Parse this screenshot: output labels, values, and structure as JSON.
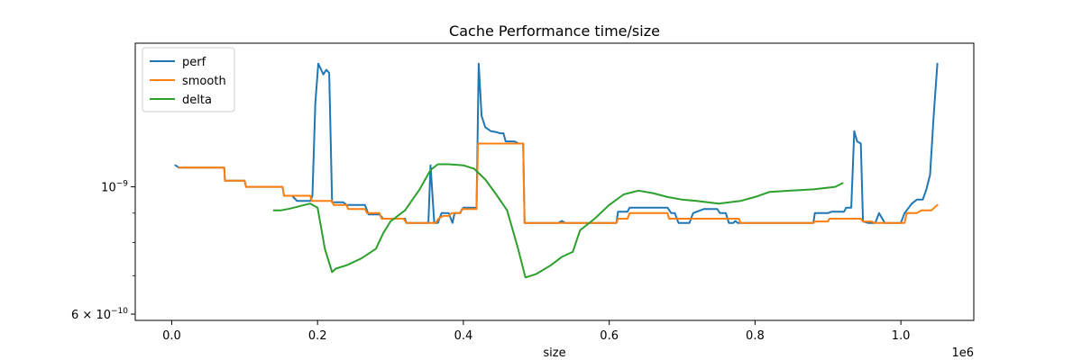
{
  "chart_data": {
    "type": "line",
    "title": "Cache Performance time/size",
    "xlabel": "size",
    "ylabel": "",
    "x_offset_label": "1e6",
    "x_scale": "linear",
    "y_scale": "log",
    "xlim": [
      -50000,
      1100000
    ],
    "ylim": [
      5.85e-10,
      1.78e-09
    ],
    "x_ticks": [
      {
        "value": 0,
        "label": "0.0"
      },
      {
        "value": 200000,
        "label": "0.2"
      },
      {
        "value": 400000,
        "label": "0.4"
      },
      {
        "value": 600000,
        "label": "0.6"
      },
      {
        "value": 800000,
        "label": "0.8"
      },
      {
        "value": 1000000,
        "label": "1.0"
      }
    ],
    "y_ticks_major": [
      {
        "value": 1e-09,
        "label_base": "10",
        "label_exp": "−9"
      },
      {
        "value": 6e-10,
        "label_base": "6 × 10",
        "label_exp": "−10"
      }
    ],
    "y_ticks_minor": [
      7e-10,
      8e-10,
      9e-10
    ],
    "grid": false,
    "legend_position": "upper-left",
    "series": [
      {
        "name": "perf",
        "color": "#1f77b4",
        "points": [
          [
            5000,
            1.09e-09
          ],
          [
            10000,
            1.08e-09
          ],
          [
            20000,
            1.08e-09
          ],
          [
            40000,
            1.08e-09
          ],
          [
            72000,
            1.08e-09
          ],
          [
            73000,
            1.025e-09
          ],
          [
            100000,
            1.025e-09
          ],
          [
            102000,
            1e-09
          ],
          [
            152000,
            1e-09
          ],
          [
            154000,
            9.65e-10
          ],
          [
            165000,
            9.65e-10
          ],
          [
            172000,
            9.45e-10
          ],
          [
            190000,
            9.45e-10
          ],
          [
            193000,
            9.65e-10
          ],
          [
            197000,
            1.4e-09
          ],
          [
            201000,
            1.64e-09
          ],
          [
            205000,
            1.6e-09
          ],
          [
            208000,
            1.57e-09
          ],
          [
            212000,
            1.6e-09
          ],
          [
            216000,
            1.58e-09
          ],
          [
            220000,
            9.4e-10
          ],
          [
            235000,
            9.4e-10
          ],
          [
            240000,
            9.3e-10
          ],
          [
            265000,
            9.3e-10
          ],
          [
            270000,
            8.95e-10
          ],
          [
            285000,
            8.95e-10
          ],
          [
            290000,
            8.8e-10
          ],
          [
            320000,
            8.8e-10
          ],
          [
            322000,
            8.65e-10
          ],
          [
            352000,
            8.65e-10
          ],
          [
            355000,
            1.09e-09
          ],
          [
            360000,
            8.65e-10
          ],
          [
            365000,
            8.65e-10
          ],
          [
            370000,
            9e-10
          ],
          [
            380000,
            9e-10
          ],
          [
            385000,
            8.65e-10
          ],
          [
            388000,
            9e-10
          ],
          [
            395000,
            9e-10
          ],
          [
            400000,
            9.2e-10
          ],
          [
            410000,
            9.2e-10
          ],
          [
            418000,
            9.2e-10
          ],
          [
            421000,
            1.64e-09
          ],
          [
            425000,
            1.33e-09
          ],
          [
            430000,
            1.27e-09
          ],
          [
            438000,
            1.25e-09
          ],
          [
            446000,
            1.245e-09
          ],
          [
            450000,
            1.24e-09
          ],
          [
            455000,
            1.24e-09
          ],
          [
            458000,
            1.2e-09
          ],
          [
            470000,
            1.2e-09
          ],
          [
            476000,
            1.19e-09
          ],
          [
            482000,
            1.19e-09
          ],
          [
            484000,
            8.65e-10
          ],
          [
            530000,
            8.65e-10
          ],
          [
            535000,
            8.72e-10
          ],
          [
            540000,
            8.65e-10
          ],
          [
            610000,
            8.65e-10
          ],
          [
            612000,
            9.05e-10
          ],
          [
            625000,
            9.05e-10
          ],
          [
            628000,
            9.2e-10
          ],
          [
            680000,
            9.2e-10
          ],
          [
            685000,
            9e-10
          ],
          [
            690000,
            9e-10
          ],
          [
            695000,
            8.65e-10
          ],
          [
            710000,
            8.65e-10
          ],
          [
            715000,
            9e-10
          ],
          [
            730000,
            9.15e-10
          ],
          [
            748000,
            9.15e-10
          ],
          [
            752000,
            9e-10
          ],
          [
            760000,
            9e-10
          ],
          [
            764000,
            8.65e-10
          ],
          [
            770000,
            8.65e-10
          ],
          [
            773000,
            8.72e-10
          ],
          [
            776000,
            8.65e-10
          ],
          [
            880000,
            8.65e-10
          ],
          [
            882000,
            9e-10
          ],
          [
            900000,
            9e-10
          ],
          [
            905000,
            9.05e-10
          ],
          [
            922000,
            9.05e-10
          ],
          [
            925000,
            9.2e-10
          ],
          [
            932000,
            9.2e-10
          ],
          [
            936000,
            1.25e-09
          ],
          [
            940000,
            1.2e-09
          ],
          [
            945000,
            1.19e-09
          ],
          [
            948000,
            8.7e-10
          ],
          [
            955000,
            8.65e-10
          ],
          [
            965000,
            8.65e-10
          ],
          [
            970000,
            9e-10
          ],
          [
            978000,
            8.65e-10
          ],
          [
            1000000,
            8.65e-10
          ],
          [
            1005000,
            9e-10
          ],
          [
            1015000,
            9.35e-10
          ],
          [
            1022000,
            9.5e-10
          ],
          [
            1030000,
            9.5e-10
          ],
          [
            1035000,
            9.9e-10
          ],
          [
            1040000,
            1.05e-09
          ],
          [
            1045000,
            1.33e-09
          ],
          [
            1050000,
            1.64e-09
          ]
        ]
      },
      {
        "name": "smooth",
        "color": "#ff7f0e",
        "points": [
          [
            10000,
            1.08e-09
          ],
          [
            72000,
            1.08e-09
          ],
          [
            73000,
            1.025e-09
          ],
          [
            100000,
            1.025e-09
          ],
          [
            102000,
            1e-09
          ],
          [
            152000,
            1e-09
          ],
          [
            154000,
            9.65e-10
          ],
          [
            190000,
            9.65e-10
          ],
          [
            192000,
            9.45e-10
          ],
          [
            220000,
            9.45e-10
          ],
          [
            222000,
            9.3e-10
          ],
          [
            240000,
            9.3e-10
          ],
          [
            242000,
            9.15e-10
          ],
          [
            265000,
            9.15e-10
          ],
          [
            268000,
            9e-10
          ],
          [
            285000,
            9e-10
          ],
          [
            288000,
            8.8e-10
          ],
          [
            318000,
            8.8e-10
          ],
          [
            322000,
            8.65e-10
          ],
          [
            362000,
            8.65e-10
          ],
          [
            366000,
            8.8e-10
          ],
          [
            372000,
            8.9e-10
          ],
          [
            380000,
            8.9e-10
          ],
          [
            384000,
            9e-10
          ],
          [
            396000,
            9e-10
          ],
          [
            398000,
            9.15e-10
          ],
          [
            418000,
            9.15e-10
          ],
          [
            420000,
            1.19e-09
          ],
          [
            482000,
            1.19e-09
          ],
          [
            484000,
            8.65e-10
          ],
          [
            610000,
            8.65e-10
          ],
          [
            612000,
            8.8e-10
          ],
          [
            625000,
            8.8e-10
          ],
          [
            628000,
            9e-10
          ],
          [
            680000,
            9e-10
          ],
          [
            682000,
            8.8e-10
          ],
          [
            778000,
            8.8e-10
          ],
          [
            780000,
            8.65e-10
          ],
          [
            880000,
            8.65e-10
          ],
          [
            882000,
            8.7e-10
          ],
          [
            900000,
            8.7e-10
          ],
          [
            902000,
            8.8e-10
          ],
          [
            945000,
            8.8e-10
          ],
          [
            948000,
            8.7e-10
          ],
          [
            960000,
            8.7e-10
          ],
          [
            964000,
            8.65e-10
          ],
          [
            1005000,
            8.65e-10
          ],
          [
            1008000,
            9e-10
          ],
          [
            1022000,
            9e-10
          ],
          [
            1028000,
            9.1e-10
          ],
          [
            1042000,
            9.1e-10
          ],
          [
            1050000,
            9.3e-10
          ]
        ]
      },
      {
        "name": "delta",
        "color": "#2ca02c",
        "points": [
          [
            140000,
            9.1e-10
          ],
          [
            150000,
            9.1e-10
          ],
          [
            160000,
            9.15e-10
          ],
          [
            175000,
            9.25e-10
          ],
          [
            190000,
            9.35e-10
          ],
          [
            200000,
            9.2e-10
          ],
          [
            210000,
            7.8e-10
          ],
          [
            220000,
            7.1e-10
          ],
          [
            225000,
            7.2e-10
          ],
          [
            240000,
            7.3e-10
          ],
          [
            260000,
            7.5e-10
          ],
          [
            280000,
            7.8e-10
          ],
          [
            290000,
            8.3e-10
          ],
          [
            300000,
            8.7e-10
          ],
          [
            320000,
            9.1e-10
          ],
          [
            340000,
            9.9e-10
          ],
          [
            355000,
            1.07e-09
          ],
          [
            365000,
            1.095e-09
          ],
          [
            380000,
            1.095e-09
          ],
          [
            400000,
            1.09e-09
          ],
          [
            415000,
            1.075e-09
          ],
          [
            430000,
            1.03e-09
          ],
          [
            445000,
            9.7e-10
          ],
          [
            460000,
            9.1e-10
          ],
          [
            475000,
            7.8e-10
          ],
          [
            485000,
            6.95e-10
          ],
          [
            500000,
            7.05e-10
          ],
          [
            520000,
            7.3e-10
          ],
          [
            535000,
            7.55e-10
          ],
          [
            550000,
            7.7e-10
          ],
          [
            560000,
            8.4e-10
          ],
          [
            580000,
            8.8e-10
          ],
          [
            600000,
            9.3e-10
          ],
          [
            620000,
            9.7e-10
          ],
          [
            640000,
            9.85e-10
          ],
          [
            660000,
            9.75e-10
          ],
          [
            680000,
            9.6e-10
          ],
          [
            700000,
            9.5e-10
          ],
          [
            720000,
            9.45e-10
          ],
          [
            750000,
            9.35e-10
          ],
          [
            780000,
            9.45e-10
          ],
          [
            800000,
            9.6e-10
          ],
          [
            820000,
            9.8e-10
          ],
          [
            850000,
            9.85e-10
          ],
          [
            880000,
            9.9e-10
          ],
          [
            910000,
            1e-09
          ],
          [
            920000,
            1.015e-09
          ]
        ]
      }
    ]
  }
}
